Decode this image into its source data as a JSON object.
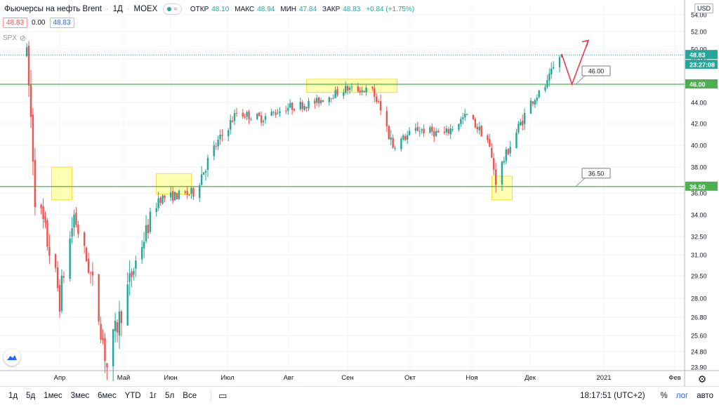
{
  "legend": {
    "title": "Фьючерсы на нефть Brent",
    "interval": "1Д",
    "exchange": "MOEX",
    "open_label": "ОТКР",
    "open": "48.10",
    "high_label": "МАКС",
    "high": "48.94",
    "low_label": "МИН",
    "low": "47.84",
    "close_label": "ЗАКР",
    "close": "48.83",
    "change": "+0.84 (+1.75%)",
    "bid": "48.83",
    "spread": "0.00",
    "ask": "48.83",
    "spx": "SPX"
  },
  "price_axis": {
    "currency": "USD",
    "ticks": [
      "54.00",
      "52.00",
      "50.00",
      "48.00",
      "46.00",
      "44.00",
      "42.00",
      "40.00",
      "38.00",
      "36.00",
      "34.00",
      "32.50",
      "31.00",
      "29.50",
      "28.00",
      "26.80",
      "25.60",
      "24.80",
      "23.90"
    ],
    "last_price_tag": "48.83",
    "countdown_tag": "23:27:08",
    "level_tags": [
      "46.00",
      "36.50"
    ]
  },
  "time_axis": {
    "labels": [
      "Апр",
      "Май",
      "Июн",
      "Июл",
      "Авг",
      "Сен",
      "Окт",
      "Ноя",
      "Дек",
      "2021",
      "Фев"
    ]
  },
  "annotations": {
    "level_callouts": [
      "46.00",
      "36.50"
    ]
  },
  "colors": {
    "up": "#26a69a",
    "down": "#ef5350",
    "level": "#4caf50",
    "highlight": "#ffff00",
    "arrow": "#f23645",
    "last_price": "#26a69a"
  },
  "bottom_bar": {
    "timeframes": [
      "1д",
      "5д",
      "1мес",
      "3мес",
      "6мес",
      "YTD",
      "1г",
      "5л",
      "Все"
    ],
    "time": "18:17:51 (UTC+2)",
    "percent": "%",
    "log": "лог",
    "auto": "авто",
    "icons": [
      "calendar-range-icon",
      "settings-gear-icon"
    ]
  },
  "chart_data": {
    "type": "candlestick",
    "title": "Фьючерсы на нефть Brent · 1Д · MOEX",
    "ylim": [
      23.9,
      54.0
    ],
    "x_labels": [
      "Апр",
      "Май",
      "Июн",
      "Июл",
      "Авг",
      "Сен",
      "Окт",
      "Ноя",
      "Дек",
      "2021",
      "Фев"
    ],
    "last": 48.83,
    "horizontal_levels": [
      46.0,
      36.5
    ],
    "anchors": [
      {
        "date": "2020-03-16",
        "price": 49.0
      },
      {
        "date": "2020-03-20",
        "price": 36.0
      },
      {
        "date": "2020-04-01",
        "price": 28.0
      },
      {
        "date": "2020-04-08",
        "price": 34.0
      },
      {
        "date": "2020-04-17",
        "price": 29.0
      },
      {
        "date": "2020-04-24",
        "price": 23.9
      },
      {
        "date": "2020-05-08",
        "price": 30.5
      },
      {
        "date": "2020-05-19",
        "price": 35.5
      },
      {
        "date": "2020-06-05",
        "price": 36.0
      },
      {
        "date": "2020-06-16",
        "price": 40.0
      },
      {
        "date": "2020-06-26",
        "price": 43.0
      },
      {
        "date": "2020-07-08",
        "price": 42.5
      },
      {
        "date": "2020-07-20",
        "price": 43.5
      },
      {
        "date": "2020-08-03",
        "price": 44.0
      },
      {
        "date": "2020-08-18",
        "price": 45.5
      },
      {
        "date": "2020-08-31",
        "price": 45.3
      },
      {
        "date": "2020-09-10",
        "price": 40.0
      },
      {
        "date": "2020-09-22",
        "price": 41.5
      },
      {
        "date": "2020-10-05",
        "price": 41.0
      },
      {
        "date": "2020-10-16",
        "price": 42.8
      },
      {
        "date": "2020-10-26",
        "price": 40.5
      },
      {
        "date": "2020-10-30",
        "price": 37.0
      },
      {
        "date": "2020-11-06",
        "price": 40.0
      },
      {
        "date": "2020-11-16",
        "price": 44.0
      },
      {
        "date": "2020-11-24",
        "price": 46.0
      },
      {
        "date": "2020-12-01",
        "price": 48.83
      }
    ],
    "forecast_path": [
      {
        "date": "2020-12-01",
        "price": 49.0
      },
      {
        "date": "2020-12-06",
        "price": 46.0
      },
      {
        "date": "2020-12-14",
        "price": 51.0
      }
    ],
    "highlight_zones": [
      {
        "from": "2020-03-28",
        "to": "2020-04-07",
        "low": 35.4,
        "high": 38.0
      },
      {
        "from": "2020-05-18",
        "to": "2020-06-04",
        "low": 35.9,
        "high": 37.5
      },
      {
        "from": "2020-07-30",
        "to": "2020-09-12",
        "low": 45.1,
        "high": 46.4
      },
      {
        "from": "2020-10-28",
        "to": "2020-11-07",
        "low": 35.4,
        "high": 37.3
      }
    ]
  }
}
